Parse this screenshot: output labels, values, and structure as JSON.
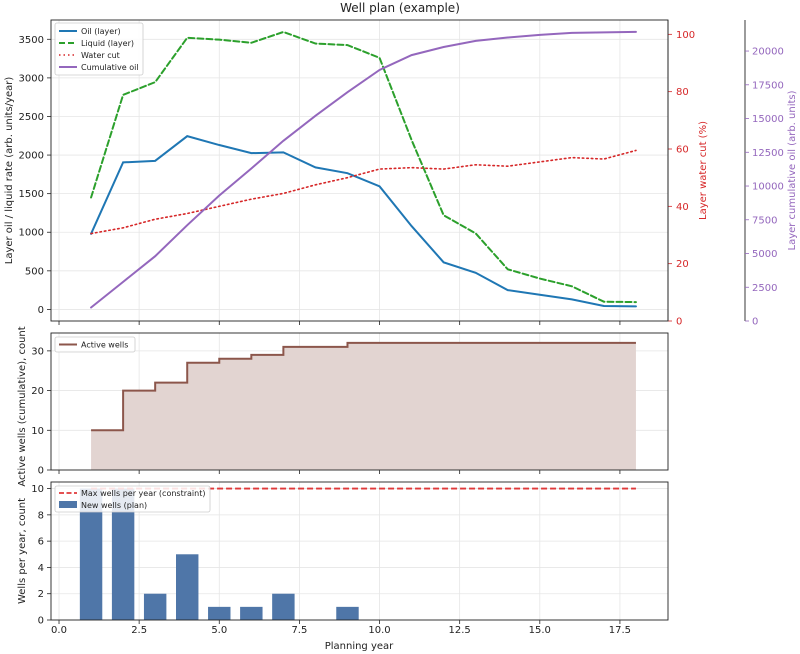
{
  "figure": {
    "title": "Well plan (example)",
    "shared_xlabel": "Planning year"
  },
  "chart_data": [
    {
      "type": "line",
      "panel": "top",
      "title": "Well plan (example)",
      "xlim": [
        -0.25,
        19.0
      ],
      "x_tick_labels": [
        "0.0",
        "2.5",
        "5.0",
        "7.5",
        "10.0",
        "12.5",
        "15.0",
        "17.5"
      ],
      "x_ticks": [
        0,
        2.5,
        5,
        7.5,
        10,
        12.5,
        15,
        17.5
      ],
      "grid": true,
      "legend_position": "upper-left",
      "x": [
        1,
        2,
        3,
        4,
        5,
        6,
        7,
        8,
        9,
        10,
        11,
        12,
        13,
        14,
        15,
        16,
        17,
        18
      ],
      "axes": [
        {
          "id": "left",
          "label": "Layer oil / liquid rate (arb. units/year)",
          "ylim": [
            -150,
            3750
          ],
          "ticks": [
            0,
            500,
            1000,
            1500,
            2000,
            2500,
            3000,
            3500
          ],
          "color": "#222222"
        },
        {
          "id": "right1",
          "label": "Layer water cut (%)",
          "ylim": [
            0,
            105
          ],
          "ticks": [
            0,
            20,
            40,
            60,
            80,
            100
          ],
          "color": "#d62728"
        },
        {
          "id": "right2",
          "label": "Layer cumulative oil (arb. units)",
          "ylim": [
            0,
            22300
          ],
          "ticks": [
            0,
            2500,
            5000,
            7500,
            10000,
            12500,
            15000,
            17500,
            20000
          ],
          "color": "#9467bd"
        }
      ],
      "series": [
        {
          "name": "Oil (layer)",
          "axis": "left",
          "color": "#1f77b4",
          "style": "solid",
          "values": [
            980,
            1905,
            1925,
            2245,
            2130,
            2025,
            2035,
            1840,
            1765,
            1595,
            1080,
            610,
            475,
            250,
            190,
            130,
            45,
            40
          ]
        },
        {
          "name": "Liquid (layer)",
          "axis": "left",
          "color": "#2ca02c",
          "style": "dashed",
          "values": [
            1450,
            2780,
            2945,
            3520,
            3495,
            3455,
            3595,
            3445,
            3425,
            3260,
            2195,
            1220,
            985,
            520,
            400,
            300,
            100,
            95
          ]
        },
        {
          "name": "Water cut",
          "axis": "right1",
          "color": "#d62728",
          "style": "dotted",
          "values": [
            30.5,
            32.5,
            35.5,
            37.5,
            40.0,
            42.5,
            44.5,
            47.5,
            50.0,
            53.0,
            53.5,
            53.0,
            54.5,
            54.0,
            55.5,
            57.0,
            56.5,
            59.5
          ]
        },
        {
          "name": "Cumulative oil",
          "axis": "right2",
          "color": "#9467bd",
          "style": "solid",
          "values": [
            1000,
            2900,
            4800,
            7100,
            9300,
            11300,
            13350,
            15200,
            16950,
            18600,
            19700,
            20300,
            20750,
            21000,
            21200,
            21350,
            21380,
            21420
          ]
        }
      ]
    },
    {
      "type": "area",
      "panel": "middle",
      "step": true,
      "ylabel": "Active wells (cumulative), count",
      "ylim": [
        0,
        34.5
      ],
      "y_ticks": [
        0,
        10,
        20,
        30
      ],
      "legend_position": "upper-left",
      "grid": true,
      "x": [
        1,
        2,
        3,
        4,
        5,
        6,
        7,
        8,
        9,
        10,
        11,
        12,
        13,
        14,
        15,
        16,
        17,
        18
      ],
      "series": [
        {
          "name": "Active wells",
          "color": "#8c564b",
          "fill": "#e2d4d1",
          "values": [
            10,
            20,
            22,
            27,
            28,
            29,
            31,
            31,
            32,
            32,
            32,
            32,
            32,
            32,
            32,
            32,
            32,
            32
          ]
        }
      ]
    },
    {
      "type": "bar",
      "panel": "bottom",
      "ylabel": "Wells per year, count",
      "xlabel": "Planning year",
      "ylim": [
        0,
        10.5
      ],
      "y_ticks": [
        0,
        2,
        4,
        6,
        8,
        10
      ],
      "legend_position": "upper-left",
      "grid": true,
      "x": [
        1,
        2,
        3,
        4,
        5,
        6,
        7,
        8,
        9,
        10,
        11,
        12,
        13,
        14,
        15,
        16,
        17,
        18
      ],
      "series": [
        {
          "name": "New wells (plan)",
          "color": "#4f76a8",
          "values": [
            10,
            10,
            2,
            5,
            1,
            1,
            2,
            0,
            1,
            0,
            0,
            0,
            0,
            0,
            0,
            0,
            0,
            0
          ]
        }
      ],
      "reference_lines": [
        {
          "name": "Max wells per year (constraint)",
          "value": 10,
          "x_range": [
            1,
            18
          ],
          "color": "#e0393a",
          "style": "dashed"
        }
      ]
    }
  ]
}
